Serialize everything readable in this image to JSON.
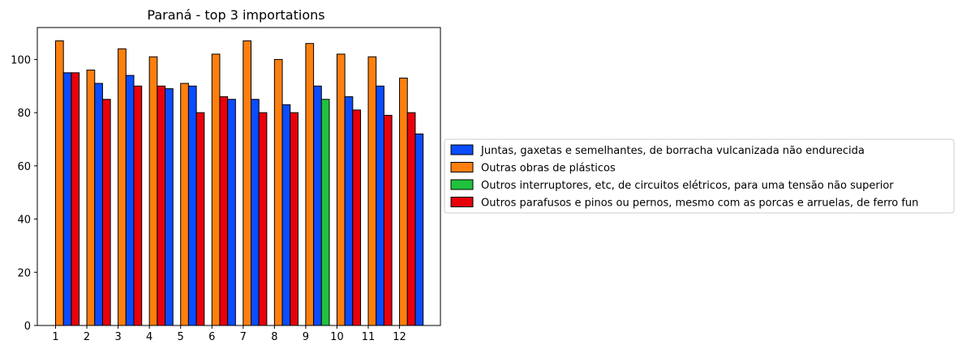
{
  "chart_data": {
    "type": "bar",
    "title": "Paraná - top 3 importations",
    "xlabel": "",
    "ylabel": "",
    "x_ticks": [
      "1",
      "2",
      "3",
      "4",
      "5",
      "6",
      "7",
      "8",
      "9",
      "10",
      "11",
      "12"
    ],
    "y_ticks": [
      "0",
      "20",
      "40",
      "60",
      "80",
      "100"
    ],
    "ylim": [
      0,
      112
    ],
    "grid": false,
    "legend_position": "center-left outside right",
    "groups": [
      {
        "month": 1,
        "bars": [
          {
            "series": 1,
            "value": 107
          },
          {
            "series": 0,
            "value": 95
          },
          {
            "series": 3,
            "value": 95
          }
        ]
      },
      {
        "month": 2,
        "bars": [
          {
            "series": 1,
            "value": 96
          },
          {
            "series": 0,
            "value": 91
          },
          {
            "series": 3,
            "value": 85
          }
        ]
      },
      {
        "month": 3,
        "bars": [
          {
            "series": 1,
            "value": 104
          },
          {
            "series": 0,
            "value": 94
          },
          {
            "series": 3,
            "value": 90
          }
        ]
      },
      {
        "month": 4,
        "bars": [
          {
            "series": 1,
            "value": 101
          },
          {
            "series": 3,
            "value": 90
          },
          {
            "series": 0,
            "value": 89
          }
        ]
      },
      {
        "month": 5,
        "bars": [
          {
            "series": 1,
            "value": 91
          },
          {
            "series": 0,
            "value": 90
          },
          {
            "series": 3,
            "value": 80
          }
        ]
      },
      {
        "month": 6,
        "bars": [
          {
            "series": 1,
            "value": 102
          },
          {
            "series": 3,
            "value": 86
          },
          {
            "series": 0,
            "value": 85
          }
        ]
      },
      {
        "month": 7,
        "bars": [
          {
            "series": 1,
            "value": 107
          },
          {
            "series": 0,
            "value": 85
          },
          {
            "series": 3,
            "value": 80
          }
        ]
      },
      {
        "month": 8,
        "bars": [
          {
            "series": 1,
            "value": 100
          },
          {
            "series": 0,
            "value": 83
          },
          {
            "series": 3,
            "value": 80
          }
        ]
      },
      {
        "month": 9,
        "bars": [
          {
            "series": 1,
            "value": 106
          },
          {
            "series": 0,
            "value": 90
          },
          {
            "series": 2,
            "value": 85
          }
        ]
      },
      {
        "month": 10,
        "bars": [
          {
            "series": 1,
            "value": 102
          },
          {
            "series": 0,
            "value": 86
          },
          {
            "series": 3,
            "value": 81
          }
        ]
      },
      {
        "month": 11,
        "bars": [
          {
            "series": 1,
            "value": 101
          },
          {
            "series": 0,
            "value": 90
          },
          {
            "series": 3,
            "value": 79
          }
        ]
      },
      {
        "month": 12,
        "bars": [
          {
            "series": 1,
            "value": 93
          },
          {
            "series": 3,
            "value": 80
          },
          {
            "series": 0,
            "value": 72
          }
        ]
      }
    ],
    "series": [
      {
        "name": "Juntas, gaxetas e semelhantes, de borracha vulcanizada não endurecida",
        "color": "#0a4cff"
      },
      {
        "name": "Outras obras de plásticos",
        "color": "#ff7f0e"
      },
      {
        "name": "Outros interruptores, etc, de circuitos elétricos, para uma tensão não superior",
        "color": "#1fc23d"
      },
      {
        "name": "Outros parafusos e pinos ou pernos, mesmo com as porcas e arruelas, de ferro fun",
        "color": "#e8000b"
      }
    ]
  }
}
